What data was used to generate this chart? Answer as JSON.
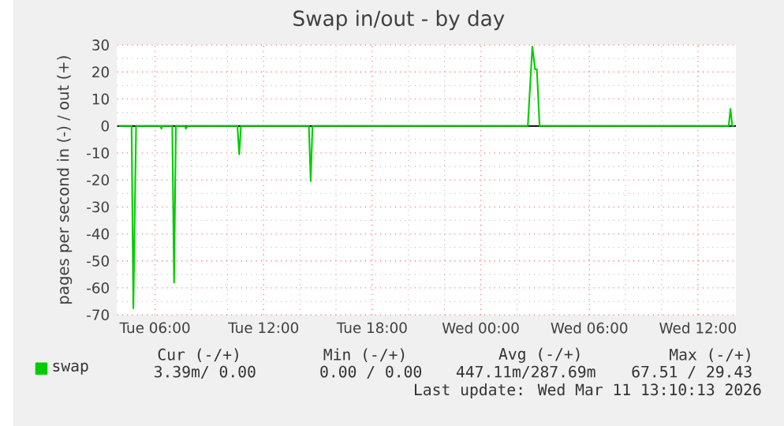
{
  "chart_data": {
    "type": "line",
    "title": "Swap in/out - by day",
    "ylabel": "pages per second in (-) / out (+)",
    "xlim": [
      "2026-03-10T03:54",
      "2026-03-11T14:06"
    ],
    "xticks": [
      {
        "value": "2026-03-10T06:00",
        "label": "Tue 06:00"
      },
      {
        "value": "2026-03-10T12:00",
        "label": "Tue 12:00"
      },
      {
        "value": "2026-03-10T18:00",
        "label": "Tue 18:00"
      },
      {
        "value": "2026-03-11T00:00",
        "label": "Wed 00:00"
      },
      {
        "value": "2026-03-11T06:00",
        "label": "Wed 06:00"
      },
      {
        "value": "2026-03-11T12:00",
        "label": "Wed 12:00"
      }
    ],
    "ylim": [
      -70,
      30
    ],
    "yticks": [
      -70,
      -60,
      -50,
      -40,
      -30,
      -20,
      -10,
      0,
      10,
      20,
      30
    ],
    "grid": true,
    "legend": "bottom left",
    "ref_lines": [
      {
        "axis": "y",
        "value": 0,
        "color": "#000000"
      }
    ],
    "series": [
      {
        "name": "swap",
        "color": "#00cc00",
        "x": [
          "2026-03-10T04:00",
          "2026-03-10T04:42",
          "2026-03-10T04:48",
          "2026-03-10T04:57",
          "2026-03-10T06:18",
          "2026-03-10T06:21",
          "2026-03-10T06:24",
          "2026-03-10T06:57",
          "2026-03-10T07:03",
          "2026-03-10T07:09",
          "2026-03-10T07:39",
          "2026-03-10T07:42",
          "2026-03-10T07:48",
          "2026-03-10T10:33",
          "2026-03-10T10:39",
          "2026-03-10T10:45",
          "2026-03-10T14:30",
          "2026-03-10T14:36",
          "2026-03-10T14:42",
          "2026-03-11T02:36",
          "2026-03-11T02:51",
          "2026-03-11T03:00",
          "2026-03-11T03:06",
          "2026-03-11T03:15",
          "2026-03-11T13:42",
          "2026-03-11T13:48",
          "2026-03-11T13:54",
          "2026-03-11T14:00"
        ],
        "values": [
          0,
          0,
          -67.5,
          0,
          0,
          -1,
          0,
          0,
          -58,
          0,
          0,
          -1,
          0,
          0,
          -10.5,
          0,
          0,
          -20.5,
          0,
          0,
          29.4,
          21,
          21,
          0,
          0,
          6.3,
          0,
          0
        ]
      }
    ],
    "annotations": [
      "Cur (-/+)",
      "Min (-/+)",
      "Avg (-/+)",
      "Max (-/+)",
      "3.39m/  0.00",
      "0.00 /  0.00",
      "447.11m/287.69m",
      "67.51 / 29.43",
      "Last update: Wed Mar 11 13:10:13 2026"
    ]
  }
}
